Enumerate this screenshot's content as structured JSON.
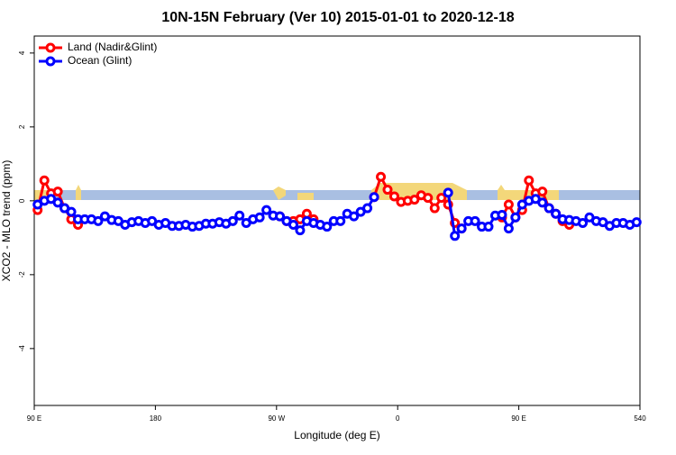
{
  "chart_data": {
    "type": "line",
    "title": "10N-15N February (Ver 10)   2015-01-01 to 2020-12-18",
    "xlabel": "Longitude (deg E)",
    "ylabel": "XCO2 - MLO trend (ppm)",
    "x": [
      92.5,
      97.5,
      102.5,
      107.5,
      112.5,
      117.5,
      122.5,
      127.5,
      132.5,
      137.5,
      142.5,
      147.5,
      152.5,
      157.5,
      162.5,
      167.5,
      172.5,
      177.5,
      182.5,
      187.5,
      192.5,
      197.5,
      202.5,
      207.5,
      212.5,
      217.5,
      222.5,
      227.5,
      232.5,
      237.5,
      242.5,
      247.5,
      252.5,
      257.5,
      262.5,
      267.5,
      272.5,
      277.5,
      282.5,
      287.5,
      292.5,
      297.5,
      302.5,
      307.5,
      312.5,
      317.5,
      322.5,
      327.5,
      332.5,
      337.5,
      342.5,
      347.5,
      352.5,
      357.5,
      362.5,
      367.5,
      372.5,
      377.5,
      382.5,
      387.5,
      392.5,
      397.5,
      402.5,
      407.5,
      412.5,
      417.5,
      422.5,
      427.5,
      432.5,
      437.5,
      442.5,
      447.5,
      452.5,
      457.5,
      462.5,
      467.5,
      472.5,
      477.5,
      482.5,
      487.5,
      492.5,
      497.5,
      502.5,
      507.5,
      512.5,
      517.5,
      522.5,
      527.5,
      532.5,
      537.5
    ],
    "series": [
      {
        "name": "Land (Nadir&Glint)",
        "color": "#ff0000",
        "values": [
          -0.25,
          0.55,
          0.2,
          0.25,
          -0.2,
          -0.5,
          -0.65,
          null,
          null,
          null,
          null,
          null,
          null,
          null,
          null,
          null,
          null,
          null,
          null,
          null,
          null,
          null,
          null,
          null,
          null,
          null,
          null,
          null,
          null,
          null,
          null,
          null,
          null,
          null,
          null,
          null,
          -0.42,
          -0.55,
          -0.55,
          -0.5,
          -0.35,
          -0.5,
          null,
          null,
          null,
          null,
          null,
          null,
          null,
          null,
          0.1,
          0.65,
          0.3,
          0.12,
          -0.03,
          0.0,
          0.03,
          0.15,
          0.08,
          -0.2,
          0.08,
          -0.1,
          -0.6,
          -0.75,
          null,
          null,
          null,
          null,
          null,
          -0.45,
          -0.1,
          -0.45,
          -0.25,
          0.55,
          0.2,
          0.25,
          -0.2,
          -0.35,
          -0.55,
          -0.65,
          null,
          null,
          null,
          null,
          null,
          null,
          null,
          null,
          null,
          null
        ]
      },
      {
        "name": "Ocean (Glint)",
        "color": "#0000ff",
        "values": [
          -0.1,
          0.0,
          0.05,
          -0.05,
          -0.2,
          -0.3,
          -0.5,
          -0.5,
          -0.5,
          -0.55,
          -0.42,
          -0.52,
          -0.55,
          -0.65,
          -0.58,
          -0.55,
          -0.6,
          -0.55,
          -0.65,
          -0.6,
          -0.68,
          -0.68,
          -0.65,
          -0.7,
          -0.68,
          -0.62,
          -0.62,
          -0.58,
          -0.62,
          -0.55,
          -0.4,
          -0.6,
          -0.5,
          -0.45,
          -0.25,
          -0.4,
          -0.42,
          -0.55,
          -0.65,
          -0.8,
          -0.55,
          -0.6,
          -0.65,
          -0.7,
          -0.55,
          -0.55,
          -0.35,
          -0.42,
          -0.3,
          -0.2,
          0.1,
          null,
          null,
          null,
          null,
          null,
          null,
          null,
          null,
          null,
          null,
          0.22,
          -0.95,
          -0.75,
          -0.55,
          -0.55,
          -0.7,
          -0.7,
          -0.4,
          -0.38,
          -0.75,
          -0.45,
          -0.1,
          0.0,
          0.05,
          -0.05,
          -0.2,
          -0.35,
          -0.5,
          -0.52,
          -0.55,
          -0.6,
          -0.45,
          -0.55,
          -0.58,
          -0.68,
          -0.6,
          -0.6,
          -0.65,
          -0.58
        ]
      }
    ],
    "xlim": [
      90,
      540
    ],
    "xticks": [
      {
        "value": 90,
        "label": "90 E"
      },
      180,
      {
        "value": 270,
        "label": "90 W"
      },
      {
        "value": 360,
        "label": "0"
      },
      {
        "value": 450,
        "label": "90 E"
      },
      540
    ],
    "ylim": [
      -5.54,
      4.46
    ],
    "yticks": [
      -4,
      -2,
      0,
      2,
      4
    ],
    "legend": "top-left"
  }
}
